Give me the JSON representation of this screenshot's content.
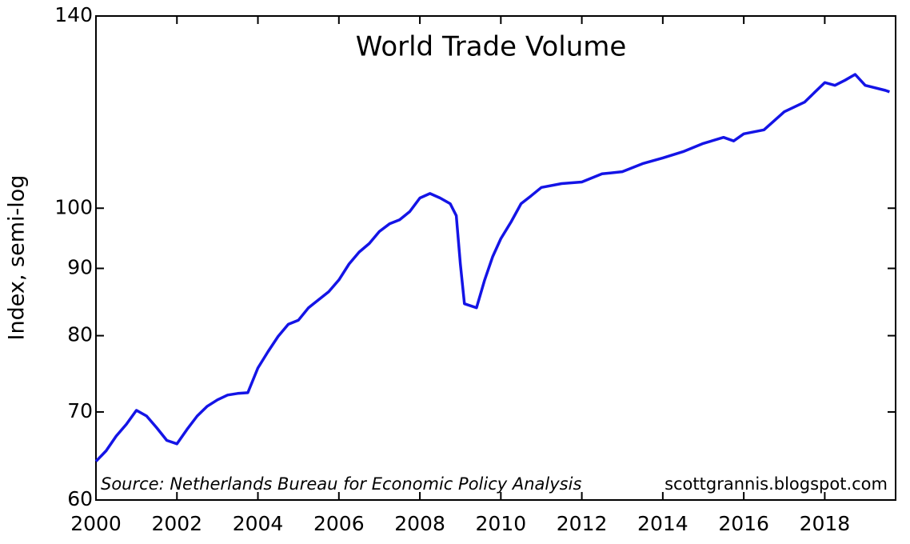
{
  "chart_data": {
    "type": "line",
    "title": "World Trade Volume",
    "ylabel": "Index, semi-log",
    "annotations": [
      "Source: Netherlands Bureau for Economic Policy Analysis",
      "scottgrannis.blogspot.com"
    ],
    "yscale": "log",
    "xlim": [
      2000,
      2019.75
    ],
    "ylim": [
      60,
      140
    ],
    "xticks": [
      2000,
      2002,
      2004,
      2006,
      2008,
      2010,
      2012,
      2014,
      2016,
      2018
    ],
    "yticks": [
      60,
      70,
      80,
      90,
      100,
      140
    ],
    "series": [
      {
        "name": "World Trade Volume",
        "color": "#1414e6",
        "x": [
          2000.0,
          2000.25,
          2000.5,
          2000.75,
          2001.0,
          2001.25,
          2001.5,
          2001.75,
          2002.0,
          2002.25,
          2002.5,
          2002.75,
          2003.0,
          2003.25,
          2003.5,
          2003.75,
          2004.0,
          2004.25,
          2004.5,
          2004.75,
          2005.0,
          2005.25,
          2005.5,
          2005.75,
          2006.0,
          2006.25,
          2006.5,
          2006.75,
          2007.0,
          2007.25,
          2007.5,
          2007.75,
          2008.0,
          2008.25,
          2008.5,
          2008.75,
          2008.9,
          2009.0,
          2009.1,
          2009.4,
          2009.6,
          2009.8,
          2010.0,
          2010.25,
          2010.5,
          2010.75,
          2011.0,
          2011.5,
          2012.0,
          2012.5,
          2013.0,
          2013.5,
          2014.0,
          2014.5,
          2015.0,
          2015.5,
          2015.75,
          2016.0,
          2016.5,
          2017.0,
          2017.5,
          2018.0,
          2018.25,
          2018.5,
          2018.75,
          2019.0,
          2019.5,
          2019.6
        ],
        "values": [
          64.2,
          65.4,
          67.1,
          68.5,
          70.2,
          69.5,
          68.1,
          66.6,
          66.2,
          67.9,
          69.5,
          70.7,
          71.5,
          72.1,
          72.3,
          72.4,
          75.6,
          77.8,
          79.9,
          81.6,
          82.2,
          84.0,
          85.2,
          86.4,
          88.2,
          90.7,
          92.6,
          94.0,
          96.0,
          97.3,
          98.0,
          99.4,
          101.8,
          102.6,
          101.8,
          100.8,
          98.7,
          90.7,
          84.6,
          84.0,
          88.2,
          91.9,
          94.8,
          97.6,
          100.8,
          102.2,
          103.7,
          104.4,
          104.7,
          106.2,
          106.6,
          108.1,
          109.2,
          110.4,
          112.0,
          113.2,
          112.5,
          113.9,
          114.7,
          118.4,
          120.4,
          124.6,
          124.0,
          125.1,
          126.4,
          124.0,
          122.9,
          122.6
        ]
      }
    ]
  }
}
